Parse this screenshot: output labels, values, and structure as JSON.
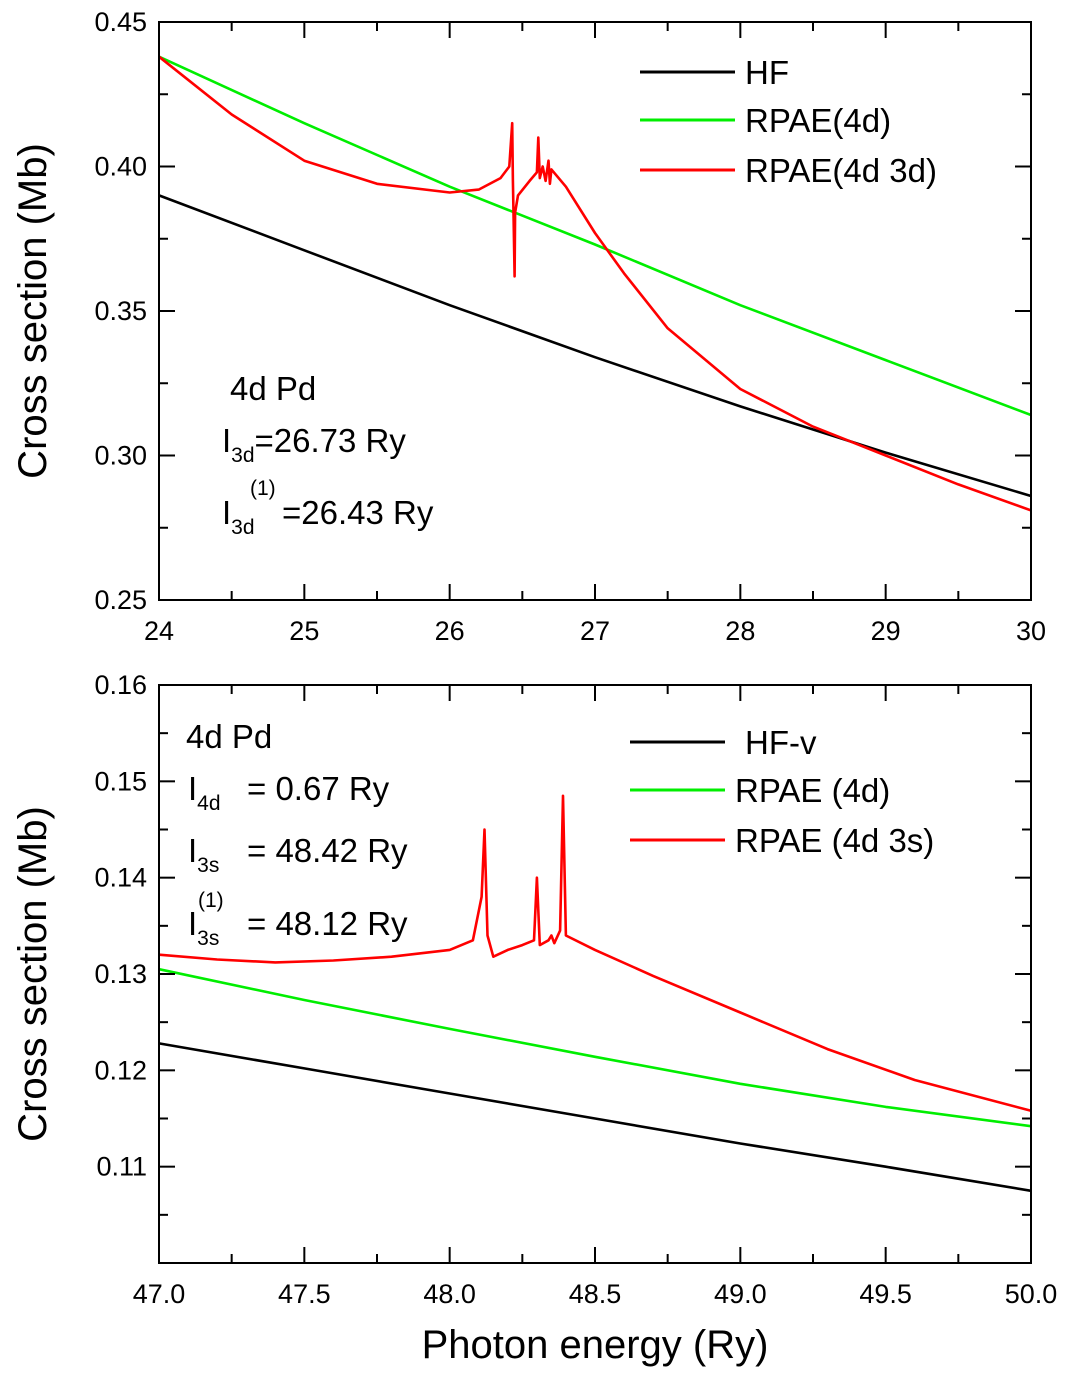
{
  "chart_data": [
    {
      "type": "line",
      "ylabel": "Cross section (Mb)",
      "xlim": [
        24,
        30
      ],
      "ylim": [
        0.25,
        0.45
      ],
      "xticks": [
        "24",
        "25",
        "26",
        "27",
        "28",
        "29",
        "30"
      ],
      "yticks": [
        "0.25",
        "0.30",
        "0.35",
        "0.40",
        "0.45"
      ],
      "legend_position": "top-right",
      "series": [
        {
          "name": "HF",
          "color": "#000000",
          "x": [
            24,
            25,
            26,
            27,
            28,
            29,
            30
          ],
          "y": [
            0.39,
            0.371,
            0.352,
            0.334,
            0.317,
            0.301,
            0.286
          ]
        },
        {
          "name": "RPAE(4d)",
          "color": "#00ee00",
          "x": [
            24,
            25,
            26,
            27,
            28,
            29,
            30
          ],
          "y": [
            0.438,
            0.415,
            0.393,
            0.373,
            0.352,
            0.333,
            0.314
          ]
        },
        {
          "name": "RPAE(4d 3d)",
          "color": "#ff0000",
          "x": [
            24,
            24.5,
            25,
            25.5,
            26,
            26.2,
            26.35,
            26.41,
            26.43,
            26.435,
            26.44,
            26.447,
            26.45,
            26.47,
            26.55,
            26.6,
            26.61,
            26.62,
            26.64,
            26.66,
            26.68,
            26.69,
            26.7,
            26.8,
            27,
            27.2,
            27.5,
            28,
            28.5,
            29,
            29.5,
            30
          ],
          "y": [
            0.438,
            0.418,
            0.402,
            0.394,
            0.391,
            0.392,
            0.396,
            0.4,
            0.415,
            0.395,
            0.382,
            0.362,
            0.384,
            0.39,
            0.395,
            0.398,
            0.41,
            0.396,
            0.4,
            0.395,
            0.402,
            0.394,
            0.399,
            0.393,
            0.377,
            0.363,
            0.344,
            0.323,
            0.31,
            0.3,
            0.29,
            0.281
          ]
        }
      ],
      "annotations": {
        "line1": "4d Pd",
        "line2_main": "I",
        "line2_sub": "3d",
        "line2_rest": "=26.73 Ry",
        "line3_main": "I",
        "line3_sub": "3d",
        "line3_sup": "(1)",
        "line3_rest": "=26.43 Ry"
      }
    },
    {
      "type": "line",
      "ylabel": "Cross section (Mb)",
      "xlabel": "Photon energy (Ry)",
      "xlim": [
        47.0,
        50.0
      ],
      "ylim": [
        0.1,
        0.16
      ],
      "xticks": [
        "47.0",
        "47.5",
        "48.0",
        "48.5",
        "49.0",
        "49.5",
        "50.0"
      ],
      "yticks": [
        "0.11",
        "0.12",
        "0.13",
        "0.14",
        "0.15",
        "0.16"
      ],
      "legend_position": "top-right",
      "series": [
        {
          "name": "HF-v",
          "color": "#000000",
          "x": [
            47.0,
            47.5,
            48.0,
            48.5,
            49.0,
            49.5,
            50.0
          ],
          "y": [
            0.1228,
            0.1202,
            0.1176,
            0.115,
            0.1124,
            0.11,
            0.1075
          ]
        },
        {
          "name": "RPAE (4d)",
          "color": "#00ee00",
          "x": [
            47.0,
            47.5,
            48.0,
            48.5,
            49.0,
            49.5,
            50.0
          ],
          "y": [
            0.1305,
            0.1273,
            0.1243,
            0.1214,
            0.1186,
            0.1162,
            0.1142
          ]
        },
        {
          "name": "RPAE (4d 3s)",
          "color": "#ff0000",
          "x": [
            47.0,
            47.2,
            47.4,
            47.6,
            47.8,
            48.0,
            48.08,
            48.11,
            48.12,
            48.13,
            48.15,
            48.2,
            48.25,
            48.29,
            48.3,
            48.31,
            48.34,
            48.35,
            48.36,
            48.38,
            48.39,
            48.4,
            48.5,
            48.7,
            49.0,
            49.3,
            49.6,
            50.0
          ],
          "y": [
            0.132,
            0.1315,
            0.1312,
            0.1314,
            0.1318,
            0.1325,
            0.1335,
            0.138,
            0.145,
            0.134,
            0.1318,
            0.1325,
            0.133,
            0.1335,
            0.14,
            0.133,
            0.1335,
            0.134,
            0.1332,
            0.1345,
            0.1485,
            0.134,
            0.1325,
            0.1298,
            0.126,
            0.1222,
            0.119,
            0.1158
          ]
        }
      ],
      "annotations": {
        "line1": "4d Pd",
        "line2_main": "I",
        "line2_sub": "4d",
        "line2_rest": "= 0.67 Ry",
        "line3_main": "I",
        "line3_sub": "3s",
        "line3_rest": "= 48.42 Ry",
        "line4_main": "I",
        "line4_sub": "3s",
        "line4_sup": "(1)",
        "line4_rest": "= 48.12 Ry"
      }
    }
  ]
}
